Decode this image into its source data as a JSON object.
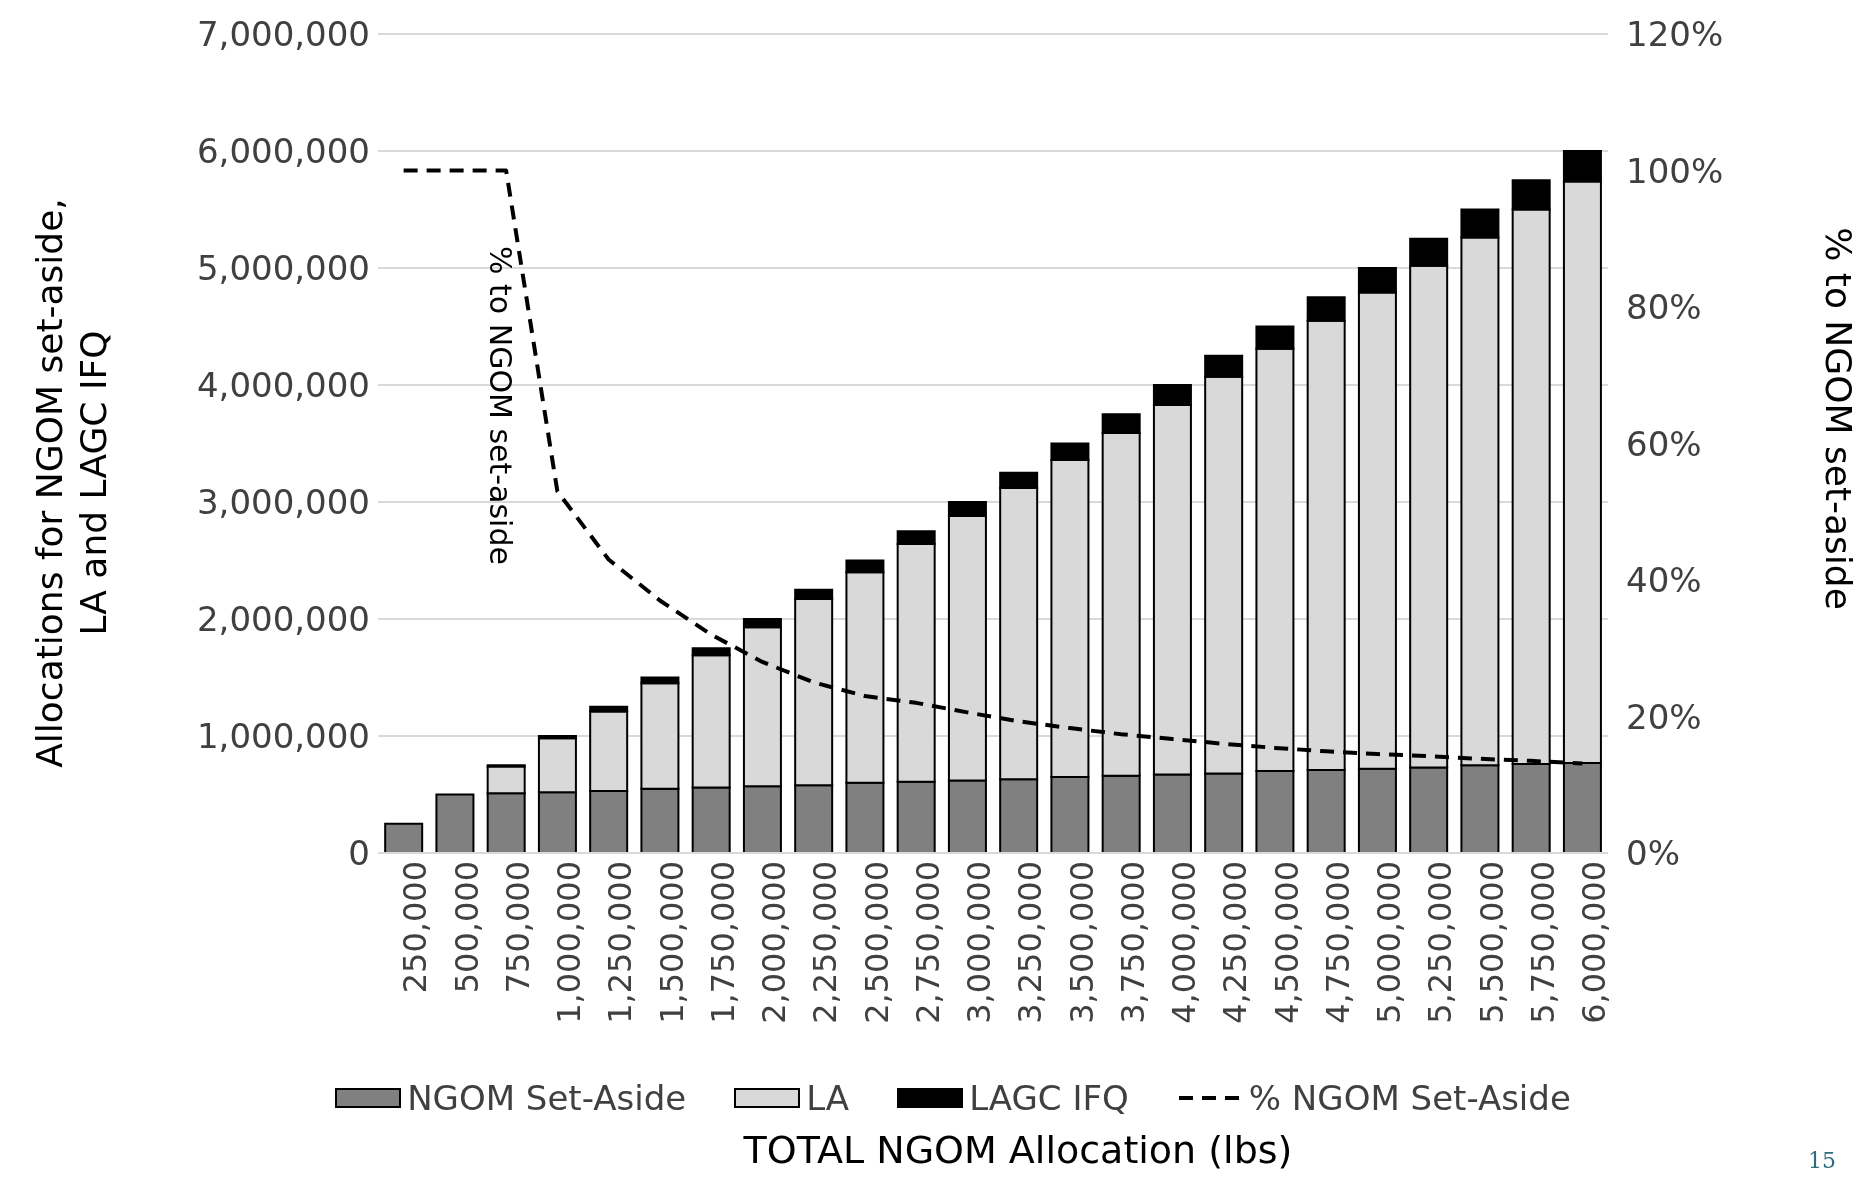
{
  "chart_data": {
    "type": "bar",
    "stacked": true,
    "xlabel": "TOTAL NGOM Allocation (lbs)",
    "ylabel": "Allocations for NGOM set-aside, LA and LAGC IFQ",
    "y2label": "% to NGOM set-aside",
    "categories": [
      "250,000",
      "500,000",
      "750,000",
      "1,000,000",
      "1,250,000",
      "1,500,000",
      "1,750,000",
      "2,000,000",
      "2,250,000",
      "2,500,000",
      "2,750,000",
      "3,000,000",
      "3,250,000",
      "3,500,000",
      "3,750,000",
      "4,000,000",
      "4,250,000",
      "4,500,000",
      "4,750,000",
      "5,000,000",
      "5,250,000",
      "5,500,000",
      "5,750,000",
      "6,000,000"
    ],
    "series": [
      {
        "name": "NGOM Set-Aside",
        "color": "#808080",
        "values": [
          250000,
          500000,
          510000,
          520000,
          530000,
          550000,
          560000,
          570000,
          580000,
          600000,
          610000,
          620000,
          630000,
          650000,
          660000,
          670000,
          680000,
          700000,
          710000,
          720000,
          730000,
          750000,
          760000,
          770000
        ]
      },
      {
        "name": "LA",
        "color": "#d9d9d9",
        "values": [
          0,
          0,
          230000,
          460000,
          680000,
          900000,
          1130000,
          1360000,
          1590000,
          1800000,
          2030000,
          2260000,
          2490000,
          2710000,
          2930000,
          3160000,
          3390000,
          3610000,
          3840000,
          4070000,
          4290000,
          4510000,
          4740000,
          4970000
        ]
      },
      {
        "name": "LAGC IFQ",
        "color": "#000000",
        "values": [
          0,
          0,
          10000,
          20000,
          40000,
          50000,
          60000,
          70000,
          80000,
          100000,
          110000,
          120000,
          130000,
          140000,
          160000,
          170000,
          180000,
          190000,
          200000,
          210000,
          230000,
          240000,
          250000,
          260000
        ]
      },
      {
        "name": "% NGOM Set-Aside",
        "type": "line",
        "axis": "y2",
        "color": "#000000",
        "line_style": "dashed",
        "marker": "none",
        "values": [
          100,
          100,
          100,
          53,
          43,
          37,
          32,
          28,
          25,
          23,
          22,
          20.6,
          19.3,
          18.3,
          17.4,
          16.7,
          16,
          15.4,
          14.9,
          14.5,
          14.2,
          13.8,
          13.5,
          13.1
        ]
      }
    ],
    "ylim": [
      0,
      7000000
    ],
    "yticks": [
      0,
      {
        "value": 1000000,
        "label": "1,000,000"
      },
      {
        "value": 2000000,
        "label": "2,000,000"
      },
      {
        "value": 3000000,
        "label": "3,000,000"
      },
      {
        "value": 4000000,
        "label": "4,000,000"
      },
      {
        "value": 5000000,
        "label": "5,000,000"
      },
      {
        "value": 6000000,
        "label": "6,000,000"
      },
      {
        "value": 7000000,
        "label": "7,000,000"
      }
    ],
    "y2lim": [
      0,
      120
    ],
    "y2ticks": [
      {
        "value": 0,
        "label": "0%"
      },
      {
        "value": 20,
        "label": "20%"
      },
      {
        "value": 40,
        "label": "40%"
      },
      {
        "value": 60,
        "label": "60%"
      },
      {
        "value": 80,
        "label": "80%"
      },
      {
        "value": 100,
        "label": "100%"
      },
      {
        "value": 120,
        "label": "120%"
      }
    ],
    "grid": "y",
    "legend": "bottom",
    "annotations": [
      "% to NGOM set-aside",
      "15"
    ]
  }
}
